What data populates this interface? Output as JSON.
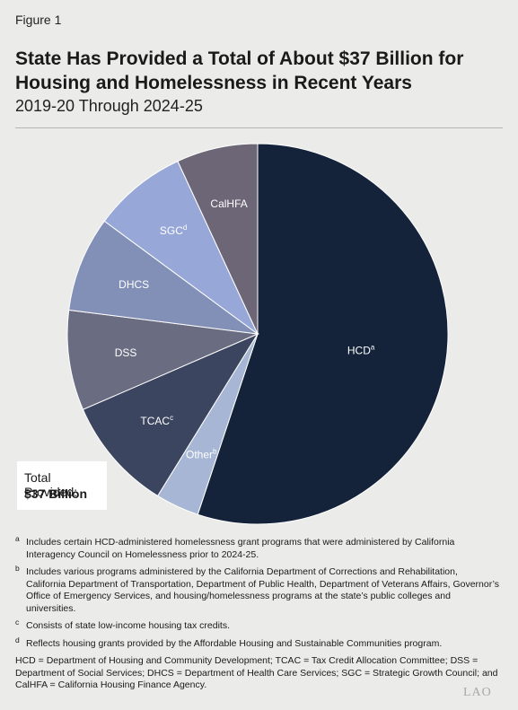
{
  "figure_label": "Figure 1",
  "title": "State Has Provided a Total of About $37 Billion for Housing and Homelessness in Recent Years",
  "subtitle": "2019-20 Through 2024-25",
  "total_box": {
    "label": "Total Provided:",
    "value": "$37 Billion"
  },
  "chart_data": {
    "type": "pie",
    "title": "State Has Provided a Total of About $37 Billion for Housing and Homelessness in Recent Years",
    "subtitle": "2019-20 Through 2024-25",
    "total": "$37 Billion",
    "start_angle_deg": 0,
    "direction": "clockwise",
    "slices": [
      {
        "label": "HCD",
        "sup": "a",
        "percent": 55.1,
        "color": "#14223a",
        "text_color": "#ffffff"
      },
      {
        "label": "Other",
        "sup": "b",
        "percent": 3.7,
        "color": "#a6b6d4",
        "text_color": "#ffffff"
      },
      {
        "label": "TCAC",
        "sup": "c",
        "percent": 9.7,
        "color": "#3c4560",
        "text_color": "#ffffff"
      },
      {
        "label": "DSS",
        "sup": "",
        "percent": 8.5,
        "color": "#6a6c82",
        "text_color": "#ffffff"
      },
      {
        "label": "DHCS",
        "sup": "",
        "percent": 8.1,
        "color": "#828fb7",
        "text_color": "#ffffff"
      },
      {
        "label": "SGC",
        "sup": "d",
        "percent": 8.0,
        "color": "#97a7d8",
        "text_color": "#ffffff"
      },
      {
        "label": "CalHFA",
        "sup": "",
        "percent": 6.9,
        "color": "#6c6677",
        "text_color": "#ffffff"
      }
    ]
  },
  "notes": [
    {
      "marker": "a",
      "text": "Includes certain HCD-administered homelessness grant programs that were administered by California Interagency Council on Homelessness prior to 2024-25."
    },
    {
      "marker": "b",
      "text": "Includes various programs administered by the California Department of Corrections and Rehabilitation, California Department of Transportation, Department of Public Health, Department of Veterans Affairs, Governor’s Office of Emergency Services, and housing/homelessness programs at the state’s public colleges and universities."
    },
    {
      "marker": "c",
      "text": "Consists of state low-income housing tax credits."
    },
    {
      "marker": "d",
      "text": "Reflects housing grants provided by the Affordable Housing and Sustainable Communities program."
    }
  ],
  "abbreviations": "HCD = Department of Housing and Community Development; TCAC = Tax Credit Allocation Committee; DSS = Department of Social Services; DHCS = Department of Health Care Services; SGC = Strategic Growth Council; and CalHFA = California Housing Finance Agency.",
  "logo_text": "LAO"
}
